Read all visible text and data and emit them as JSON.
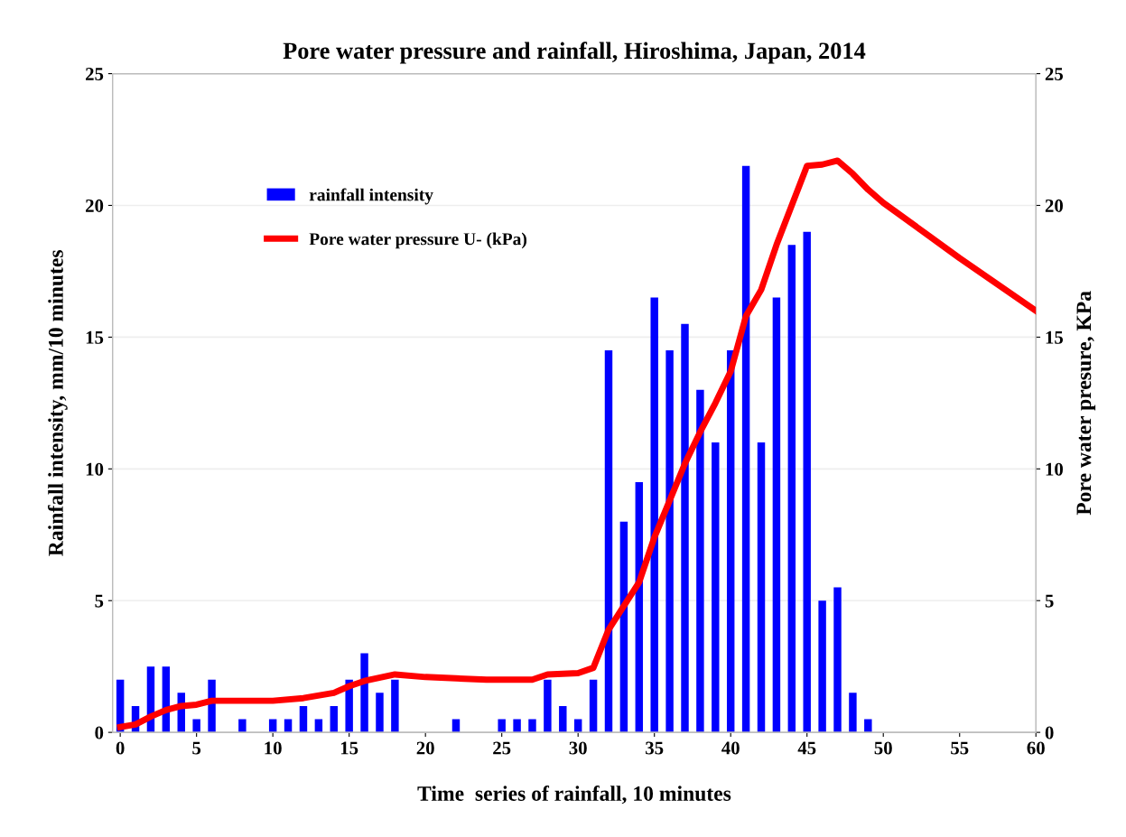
{
  "chart_data": {
    "type": "bar",
    "title": "Pore water pressure and rainfall, Hiroshima, Japan, 2014",
    "xlabel": "Time  series of rainfall, 10 minutes",
    "ylabel": "Rainfall intensity, mm/10 minutes",
    "y2label": "Pore water presure, KPa",
    "x": [
      0,
      1,
      2,
      3,
      4,
      5,
      6,
      7,
      8,
      9,
      10,
      11,
      12,
      13,
      14,
      15,
      16,
      17,
      18,
      19,
      20,
      21,
      22,
      23,
      24,
      25,
      26,
      27,
      28,
      29,
      30,
      31,
      32,
      33,
      34,
      35,
      36,
      37,
      38,
      39,
      40,
      41,
      42,
      43,
      44,
      45,
      46,
      47,
      48,
      49
    ],
    "series": [
      {
        "name": "rainfall intensity",
        "color": "#0000ff",
        "values": [
          2,
          1,
          2.5,
          2.5,
          1.5,
          0.5,
          2,
          0,
          0.5,
          0,
          0.5,
          0.5,
          1,
          0.5,
          1,
          2,
          3,
          1.5,
          2,
          0,
          0,
          0,
          0.5,
          0,
          0,
          0.5,
          0.5,
          0.5,
          2,
          1,
          0.5,
          2,
          14.5,
          8,
          9.5,
          16.5,
          14.5,
          15.5,
          13,
          11,
          14.5,
          21.5,
          11,
          16.5,
          18.5,
          19,
          5,
          5.5,
          1.5,
          0.5
        ]
      },
      {
        "name": "Pore water pressure U- (kPa)",
        "type": "line",
        "axis": "y2",
        "color": "#ff0000",
        "x": [
          0,
          1,
          2,
          3,
          4,
          5,
          6,
          8,
          10,
          12,
          14,
          15,
          16,
          18,
          20,
          22,
          24,
          26,
          27,
          28,
          30,
          31,
          32,
          33,
          34,
          35,
          36,
          37,
          38,
          39,
          40,
          41,
          42,
          43,
          44,
          45,
          46,
          47,
          48,
          49,
          50,
          55,
          60
        ],
        "values": [
          0.2,
          0.3,
          0.6,
          0.85,
          1.0,
          1.05,
          1.2,
          1.2,
          1.2,
          1.3,
          1.5,
          1.75,
          1.95,
          2.2,
          2.1,
          2.05,
          2.0,
          2.0,
          2.0,
          2.2,
          2.25,
          2.45,
          3.9,
          4.8,
          5.7,
          7.4,
          8.8,
          10.2,
          11.4,
          12.5,
          13.7,
          15.8,
          16.8,
          18.5,
          20,
          21.5,
          21.55,
          21.7,
          21.2,
          20.6,
          20.1,
          18.0,
          16.0
        ]
      }
    ],
    "xlim": [
      -0.5,
      60
    ],
    "xticks": [
      0,
      5,
      10,
      15,
      20,
      25,
      30,
      35,
      40,
      45,
      50,
      55,
      60
    ],
    "ylim": [
      0,
      25
    ],
    "yticks": [
      0,
      5,
      10,
      15,
      20,
      25
    ],
    "y2lim": [
      0,
      25
    ],
    "y2ticks": [
      0,
      5,
      10,
      15,
      20,
      25
    ],
    "grid": "y",
    "legend": "top left",
    "marker": "none",
    "line_style": "solid"
  }
}
